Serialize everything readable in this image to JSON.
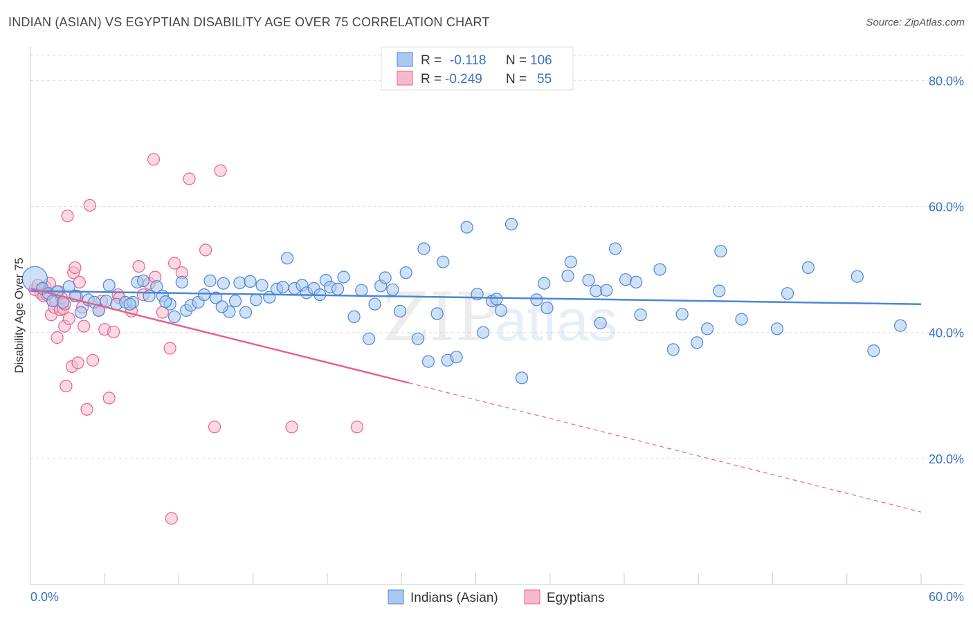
{
  "title": "INDIAN (ASIAN) VS EGYPTIAN DISABILITY AGE OVER 75 CORRELATION CHART",
  "source": "Source: ZipAtlas.com",
  "colors": {
    "blue": "#4a86d6",
    "pink": "#e8628c",
    "blue_fill": "#a9c7ef",
    "pink_fill": "#f6b9cc"
  },
  "chart_data": {
    "type": "scatter",
    "title": "INDIAN (ASIAN) VS EGYPTIAN DISABILITY AGE OVER 75 CORRELATION CHART",
    "xlabel": "",
    "ylabel": "Disability Age Over 75",
    "xlim": [
      0,
      60
    ],
    "ylim": [
      0,
      84
    ],
    "x_tick_labels": [
      "0.0%",
      "60.0%"
    ],
    "y_ticks": [
      20,
      40,
      60,
      80
    ],
    "y_tick_labels": [
      "20.0%",
      "40.0%",
      "60.0%",
      "80.0%"
    ],
    "legend": [
      {
        "r_label": "R =",
        "r_value": "-0.118",
        "n_label": "N =",
        "n_value": "106"
      },
      {
        "r_label": "R =",
        "r_value": "-0.249",
        "n_label": "N =",
        "n_value": "55"
      }
    ],
    "series": [
      {
        "name": "Indians (Asian)",
        "trend": {
          "x0": 0,
          "y0": 46.6,
          "x1": 60,
          "y1": 44.5
        },
        "points": [
          [
            0.3,
            48.5
          ],
          [
            0.8,
            47.0
          ],
          [
            1.2,
            46.2
          ],
          [
            1.8,
            46.5
          ],
          [
            2.6,
            47.3
          ],
          [
            3.0,
            45.8
          ],
          [
            3.4,
            43.2
          ],
          [
            3.9,
            45.2
          ],
          [
            4.3,
            44.8
          ],
          [
            4.6,
            43.5
          ],
          [
            5.1,
            45.0
          ],
          [
            5.3,
            47.5
          ],
          [
            5.8,
            44.5
          ],
          [
            6.4,
            44.8
          ],
          [
            6.9,
            44.8
          ],
          [
            7.2,
            48.0
          ],
          [
            7.6,
            48.2
          ],
          [
            8.0,
            45.8
          ],
          [
            8.5,
            47.3
          ],
          [
            8.9,
            45.8
          ],
          [
            9.4,
            44.5
          ],
          [
            9.7,
            42.5
          ],
          [
            10.2,
            48.0
          ],
          [
            10.5,
            43.5
          ],
          [
            10.8,
            44.3
          ],
          [
            11.3,
            44.8
          ],
          [
            11.7,
            46.0
          ],
          [
            12.1,
            48.2
          ],
          [
            12.5,
            45.5
          ],
          [
            13.0,
            47.8
          ],
          [
            13.4,
            43.3
          ],
          [
            13.8,
            45.0
          ],
          [
            14.1,
            47.9
          ],
          [
            14.5,
            43.2
          ],
          [
            14.8,
            48.1
          ],
          [
            15.2,
            45.2
          ],
          [
            15.6,
            47.5
          ],
          [
            16.1,
            45.6
          ],
          [
            16.6,
            46.9
          ],
          [
            17.0,
            47.2
          ],
          [
            17.3,
            51.8
          ],
          [
            17.8,
            47.0
          ],
          [
            18.3,
            47.5
          ],
          [
            18.6,
            46.3
          ],
          [
            19.1,
            47.0
          ],
          [
            19.5,
            46.0
          ],
          [
            19.9,
            48.3
          ],
          [
            20.2,
            47.2
          ],
          [
            20.7,
            46.9
          ],
          [
            21.1,
            48.8
          ],
          [
            21.8,
            42.5
          ],
          [
            22.3,
            46.7
          ],
          [
            22.8,
            39.0
          ],
          [
            23.2,
            44.5
          ],
          [
            23.6,
            47.4
          ],
          [
            23.9,
            48.7
          ],
          [
            24.4,
            46.8
          ],
          [
            24.9,
            43.4
          ],
          [
            25.3,
            49.5
          ],
          [
            26.1,
            39.0
          ],
          [
            26.5,
            53.3
          ],
          [
            26.8,
            35.4
          ],
          [
            27.4,
            43.0
          ],
          [
            27.8,
            51.2
          ],
          [
            28.1,
            35.6
          ],
          [
            28.7,
            36.1
          ],
          [
            29.4,
            56.7
          ],
          [
            30.1,
            46.1
          ],
          [
            30.5,
            40.0
          ],
          [
            31.1,
            45.0
          ],
          [
            31.4,
            45.3
          ],
          [
            31.7,
            43.5
          ],
          [
            32.4,
            57.2
          ],
          [
            33.1,
            32.8
          ],
          [
            34.1,
            45.2
          ],
          [
            34.6,
            47.8
          ],
          [
            34.8,
            43.9
          ],
          [
            36.2,
            49.0
          ],
          [
            36.4,
            51.2
          ],
          [
            37.6,
            48.3
          ],
          [
            38.1,
            46.6
          ],
          [
            38.4,
            41.5
          ],
          [
            38.8,
            46.7
          ],
          [
            39.4,
            53.3
          ],
          [
            40.1,
            48.4
          ],
          [
            40.8,
            48.0
          ],
          [
            41.1,
            42.8
          ],
          [
            42.4,
            50.0
          ],
          [
            43.3,
            37.3
          ],
          [
            43.9,
            42.9
          ],
          [
            44.9,
            38.4
          ],
          [
            45.6,
            40.6
          ],
          [
            46.4,
            46.6
          ],
          [
            46.5,
            52.9
          ],
          [
            47.9,
            42.1
          ],
          [
            50.3,
            40.6
          ],
          [
            51.0,
            46.2
          ],
          [
            52.4,
            50.3
          ],
          [
            55.7,
            48.9
          ],
          [
            56.8,
            37.1
          ],
          [
            58.6,
            41.1
          ],
          [
            1.5,
            45.0
          ],
          [
            2.2,
            44.8
          ],
          [
            6.7,
            44.5
          ],
          [
            9.1,
            44.9
          ],
          [
            12.9,
            44.1
          ]
        ]
      },
      {
        "name": "Egyptians",
        "trend": {
          "x0": 0,
          "y0": 47.0,
          "x1": 25.5,
          "y1": 32.0,
          "x2": 60,
          "y2": 11.5
        },
        "points": [
          [
            0.3,
            46.8
          ],
          [
            0.5,
            47.5
          ],
          [
            0.7,
            46.2
          ],
          [
            0.9,
            45.8
          ],
          [
            1.0,
            47.2
          ],
          [
            1.1,
            46.0
          ],
          [
            1.3,
            47.8
          ],
          [
            1.4,
            42.8
          ],
          [
            1.6,
            44.0
          ],
          [
            1.7,
            45.0
          ],
          [
            1.8,
            39.2
          ],
          [
            1.9,
            46.5
          ],
          [
            2.0,
            43.6
          ],
          [
            2.1,
            45.5
          ],
          [
            2.2,
            43.8
          ],
          [
            2.3,
            44.5
          ],
          [
            2.3,
            41.0
          ],
          [
            2.4,
            31.5
          ],
          [
            2.5,
            58.5
          ],
          [
            2.6,
            42.2
          ],
          [
            2.8,
            34.6
          ],
          [
            2.9,
            49.5
          ],
          [
            3.0,
            50.3
          ],
          [
            3.1,
            45.8
          ],
          [
            3.2,
            35.2
          ],
          [
            3.3,
            48.0
          ],
          [
            3.5,
            44.0
          ],
          [
            3.6,
            41.0
          ],
          [
            3.8,
            27.8
          ],
          [
            4.0,
            60.2
          ],
          [
            4.2,
            35.6
          ],
          [
            4.6,
            43.5
          ],
          [
            4.8,
            45.0
          ],
          [
            5.0,
            40.5
          ],
          [
            5.3,
            29.6
          ],
          [
            5.6,
            40.1
          ],
          [
            5.9,
            46.0
          ],
          [
            6.0,
            45.5
          ],
          [
            6.8,
            43.4
          ],
          [
            7.3,
            50.5
          ],
          [
            7.6,
            46.0
          ],
          [
            8.0,
            47.8
          ],
          [
            8.3,
            67.5
          ],
          [
            8.9,
            43.2
          ],
          [
            9.4,
            37.5
          ],
          [
            9.5,
            10.5
          ],
          [
            9.7,
            51.0
          ],
          [
            10.2,
            49.5
          ],
          [
            10.7,
            64.4
          ],
          [
            11.8,
            53.1
          ],
          [
            12.4,
            25.0
          ],
          [
            12.8,
            65.7
          ],
          [
            17.6,
            25.0
          ],
          [
            22.0,
            25.0
          ],
          [
            8.4,
            48.8
          ]
        ]
      }
    ]
  },
  "legend_bottom": {
    "blue_label": "Indians (Asian)",
    "pink_label": "Egyptians"
  },
  "watermark": {
    "zip": "ZIP",
    "atlas": "atlas"
  }
}
